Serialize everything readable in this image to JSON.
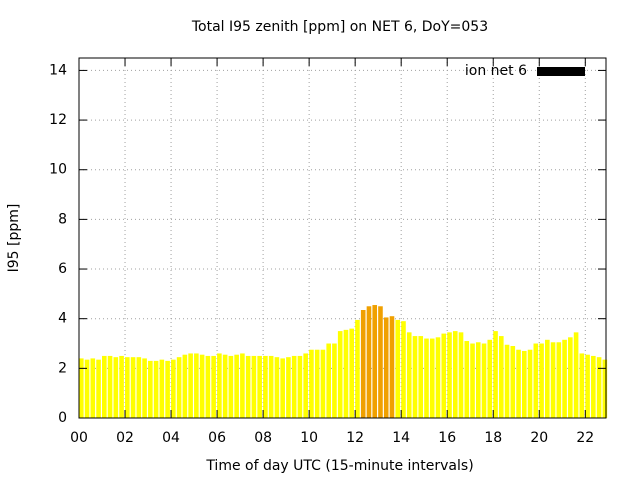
{
  "chart_data": {
    "type": "bar",
    "title": "Total I95 zenith [ppm] on NET 6, DoY=053",
    "xlabel": "Time of day UTC (15-minute intervals)",
    "ylabel": "I95 [ppm]",
    "legend": "top-right",
    "grid": true,
    "series": [
      {
        "name": "ion net 6",
        "color": "#000000",
        "x": [
          0,
          0.25,
          0.5,
          0.75,
          1,
          1.25,
          1.5,
          1.75,
          2,
          2.25,
          2.5,
          2.75,
          3,
          3.25,
          3.5,
          3.75,
          4,
          4.25,
          4.5,
          4.75,
          5,
          5.25,
          5.5,
          5.75,
          6,
          6.25,
          6.5,
          6.75,
          7,
          7.25,
          7.5,
          7.75,
          8,
          8.25,
          8.5,
          8.75,
          9,
          9.25,
          9.5,
          9.75,
          10,
          10.25,
          10.5,
          10.75,
          11,
          11.25,
          11.5,
          11.75,
          12,
          12.25,
          12.5,
          12.75,
          13,
          13.25,
          13.5,
          13.75,
          14,
          14.25,
          14.5,
          14.75,
          15,
          15.25,
          15.5,
          15.75,
          16,
          16.25,
          16.5,
          16.75,
          17,
          17.25,
          17.5,
          17.75,
          18,
          18.25,
          18.5,
          18.75,
          19,
          19.25,
          19.5,
          19.75,
          20,
          20.25,
          20.5,
          20.75,
          21,
          21.25,
          21.5,
          21.75,
          22,
          22.25,
          22.5,
          22.75
        ],
        "values": [
          2.4,
          2.35,
          2.4,
          2.35,
          2.5,
          2.5,
          2.45,
          2.5,
          2.45,
          2.45,
          2.45,
          2.4,
          2.3,
          2.3,
          2.35,
          2.3,
          2.35,
          2.45,
          2.55,
          2.6,
          2.6,
          2.55,
          2.5,
          2.5,
          2.6,
          2.55,
          2.5,
          2.55,
          2.6,
          2.5,
          2.5,
          2.5,
          2.5,
          2.5,
          2.45,
          2.4,
          2.45,
          2.5,
          2.5,
          2.6,
          2.75,
          2.75,
          2.75,
          3.0,
          3.0,
          3.5,
          3.55,
          3.6,
          3.95,
          4.35,
          4.5,
          4.55,
          4.5,
          4.05,
          4.1,
          3.95,
          3.9,
          3.45,
          3.3,
          3.3,
          3.2,
          3.2,
          3.25,
          3.4,
          3.45,
          3.5,
          3.45,
          3.1,
          3.0,
          3.05,
          3.0,
          3.15,
          3.5,
          3.3,
          2.95,
          2.9,
          2.75,
          2.7,
          2.75,
          3.0,
          3.0,
          3.15,
          3.05,
          3.05,
          3.15,
          3.25,
          3.45,
          2.6,
          2.55,
          2.5,
          2.45,
          2.35
        ],
        "bar_colors": [
          "#ffff00",
          "#ffff00",
          "#ffff00",
          "#ffff00",
          "#ffff00",
          "#ffff00",
          "#ffff00",
          "#ffff00",
          "#ffff00",
          "#ffff00",
          "#ffff00",
          "#ffff00",
          "#ffff00",
          "#ffff00",
          "#ffff00",
          "#ffff00",
          "#ffff00",
          "#ffff00",
          "#ffff00",
          "#ffff00",
          "#ffff00",
          "#ffff00",
          "#ffff00",
          "#ffff00",
          "#ffff00",
          "#ffff00",
          "#ffff00",
          "#ffff00",
          "#ffff00",
          "#ffff00",
          "#ffff00",
          "#ffff00",
          "#ffff00",
          "#ffff00",
          "#ffff00",
          "#ffff00",
          "#ffff00",
          "#ffff00",
          "#ffff00",
          "#ffff00",
          "#ffff00",
          "#ffff00",
          "#ffff00",
          "#ffff00",
          "#ffff00",
          "#ffff00",
          "#ffff00",
          "#ffff00",
          "#ffff00",
          "#f0a000",
          "#f0a000",
          "#f0a000",
          "#f0a000",
          "#f0a000",
          "#f0a000",
          "#ffff00",
          "#ffff00",
          "#ffff00",
          "#ffff00",
          "#ffff00",
          "#ffff00",
          "#ffff00",
          "#ffff00",
          "#ffff00",
          "#ffff00",
          "#ffff00",
          "#ffff00",
          "#ffff00",
          "#ffff00",
          "#ffff00",
          "#ffff00",
          "#ffff00",
          "#ffff00",
          "#ffff00",
          "#ffff00",
          "#ffff00",
          "#ffff00",
          "#ffff00",
          "#ffff00",
          "#ffff00",
          "#ffff00",
          "#ffff00",
          "#ffff00",
          "#ffff00",
          "#ffff00",
          "#ffff00",
          "#ffff00",
          "#ffff00",
          "#ffff00",
          "#ffff00",
          "#ffff00",
          "#ffff00"
        ]
      }
    ],
    "xlim": [
      0,
      22.9
    ],
    "xticks": [
      {
        "value": 0,
        "label": "00"
      },
      {
        "value": 2,
        "label": "02"
      },
      {
        "value": 4,
        "label": "04"
      },
      {
        "value": 6,
        "label": "06"
      },
      {
        "value": 8,
        "label": "08"
      },
      {
        "value": 10,
        "label": "10"
      },
      {
        "value": 12,
        "label": "12"
      },
      {
        "value": 14,
        "label": "14"
      },
      {
        "value": 16,
        "label": "16"
      },
      {
        "value": 18,
        "label": "18"
      },
      {
        "value": 20,
        "label": "20"
      },
      {
        "value": 22,
        "label": "22"
      }
    ],
    "ylim": [
      0,
      14.5
    ],
    "yticks": [
      0,
      2,
      4,
      6,
      8,
      10,
      12,
      14
    ]
  }
}
